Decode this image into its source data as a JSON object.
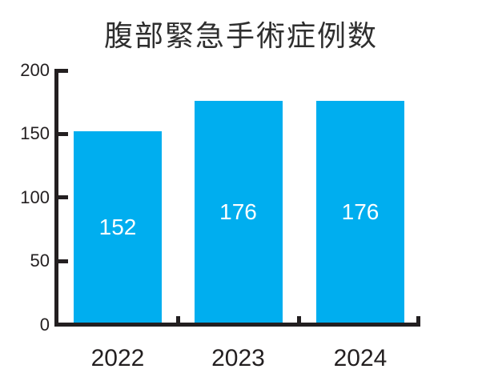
{
  "chart_data": {
    "type": "bar",
    "title": "腹部緊急手術症例数",
    "categories": [
      "2022",
      "2023",
      "2024"
    ],
    "values": [
      152,
      176,
      176
    ],
    "bar_labels": [
      "152",
      "176",
      "176"
    ],
    "xlabel": "",
    "ylabel": "",
    "ylim": [
      0,
      200
    ],
    "yticks": [
      0,
      50,
      100,
      150,
      200
    ],
    "grid": false,
    "legend": null,
    "colors": {
      "bar": "#00AEEF",
      "axis": "#231F20",
      "bar_label": "#FFFFFF",
      "title": "#2E2E2E",
      "background": "#FFFFFF"
    }
  }
}
